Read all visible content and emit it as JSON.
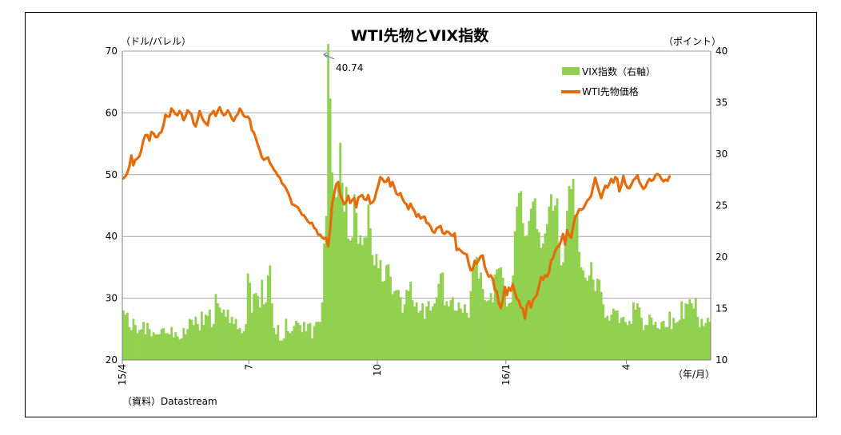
{
  "chart_data": {
    "type": "bar+line",
    "title": "WTI先物とVIX指数",
    "left_axis_unit": "（ドル/バレル）",
    "right_axis_unit": "（ポイント）",
    "x_unit": "（年/月）",
    "source_note": "（資料）Datastream",
    "left_ylim": [
      20,
      70
    ],
    "left_yticks": [
      "20",
      "30",
      "40",
      "50",
      "60",
      "70"
    ],
    "right_ylim": [
      10,
      40
    ],
    "right_yticks": [
      "10",
      "15",
      "20",
      "25",
      "30",
      "35",
      "40"
    ],
    "x_tick_labels": [
      "15/4",
      "7",
      "10",
      "16/1",
      "4"
    ],
    "x_tick_index": [
      0,
      63,
      127,
      191,
      251
    ],
    "grid": true,
    "legend_position": "top-right",
    "annotation": {
      "text": "40.74",
      "series": "VIX指数（右軸）",
      "index": 102
    },
    "series": [
      {
        "name": "VIX指数（右軸）",
        "axis": "right",
        "kind": "bar",
        "color": "#92d050",
        "values": [
          14.8,
          14.4,
          14.6,
          13.2,
          12.9,
          14.0,
          13.4,
          12.6,
          12.9,
          13.0,
          13.7,
          12.5,
          13.6,
          13.0,
          12.3,
          12.7,
          12.5,
          12.5,
          12.5,
          13.0,
          13.1,
          12.6,
          12.6,
          12.5,
          13.2,
          12.2,
          12.7,
          12.3,
          12.0,
          12.1,
          13.1,
          12.5,
          13.0,
          14.0,
          13.9,
          13.4,
          14.2,
          13.5,
          12.9,
          14.7,
          13.4,
          14.4,
          14.3,
          14.9,
          13.2,
          13.5,
          16.4,
          15.5,
          15.1,
          14.6,
          14.9,
          14.2,
          14.9,
          13.6,
          14.2,
          13.5,
          14.0,
          13.0,
          13.1,
          12.6,
          12.8,
          13.5,
          18.4,
          17.5,
          14.6,
          16.4,
          16.5,
          16.2,
          15.1,
          17.8,
          15.4,
          15.6,
          18.2,
          19.2,
          15.5,
          13.1,
          12.5,
          13.4,
          11.9,
          11.9,
          12.1,
          14.0,
          12.8,
          12.6,
          12.8,
          13.3,
          13.8,
          13.6,
          13.4,
          12.7,
          13.7,
          12.8,
          13.5,
          13.6,
          12.1,
          13.3,
          13.7,
          13.7,
          13.7,
          15.6,
          21.3,
          24.0,
          40.7,
          35.4,
          28.2,
          26.5,
          25.8,
          27.0,
          31.1,
          27.2,
          24.4,
          26.8,
          21.8,
          21.6,
          21.9,
          26.1,
          24.3,
          21.3,
          22.1,
          21.2,
          21.9,
          21.9,
          25.1,
          22.8,
          20.2,
          19.2,
          20.3,
          18.9,
          19.7,
          17.6,
          17.7,
          19.2,
          19.3,
          18.1,
          16.4,
          16.7,
          16.8,
          16.8,
          16.1,
          14.6,
          15.4,
          16.8,
          16.7,
          17.6,
          15.8,
          15.2,
          15.6,
          14.6,
          14.8,
          15.5,
          14.0,
          15.2,
          15.7,
          14.8,
          15.2,
          15.5,
          16.1,
          17.4,
          18.4,
          18.5,
          15.3,
          15.7,
          15.2,
          15.8,
          16.1,
          14.8,
          14.8,
          15.6,
          15.0,
          14.6,
          15.4,
          14.6,
          14.1,
          16.7,
          18.9,
          19.8,
          20.0,
          17.9,
          18.5,
          16.9,
          15.8,
          15.7,
          15.8,
          16.5,
          15.6,
          18.3,
          18.8,
          18.9,
          19.0,
          18.0,
          17.1,
          15.2,
          15.5,
          15.6,
          18.2,
          22.5,
          24.9,
          26.2,
          26.4,
          23.3,
          22.0,
          22.1,
          23.5,
          24.7,
          25.4,
          25.7,
          22.7,
          22.4,
          20.9,
          21.3,
          22.3,
          23.2,
          24.9,
          26.1,
          24.5,
          25.0,
          25.7,
          21.4,
          19.2,
          19.5,
          21.4,
          24.5,
          26.9,
          26.6,
          27.6,
          24.0,
          24.4,
          20.5,
          19.0,
          18.7,
          18.0,
          17.7,
          18.2,
          19.5,
          17.8,
          16.7,
          17.9,
          17.8,
          16.6,
          15.4,
          14.1,
          14.3,
          13.8,
          14.4,
          15.0,
          14.8,
          14.8,
          13.6,
          14.1,
          14.2,
          13.7,
          13.4,
          13.8,
          13.5,
          15.6,
          14.9,
          15.5,
          15.1,
          14.1,
          12.9,
          13.4,
          13.4,
          14.4,
          14.1,
          13.4,
          13.7,
          13.1,
          13.0,
          13.7,
          13.8,
          13.2,
          13.2,
          14.7,
          13.0,
          14.1,
          13.6,
          13.7,
          13.9,
          15.7,
          14.0,
          15.5,
          15.4,
          15.9,
          15.5,
          15.0,
          16.0,
          14.2,
          13.2,
          14.0,
          13.3,
          13.6,
          14.1,
          13.7
        ]
      },
      {
        "name": "WTI先物価格",
        "axis": "left",
        "kind": "line",
        "color": "#e46c0a",
        "values": [
          49.4,
          49.7,
          50.3,
          51.3,
          53.1,
          51.5,
          52.4,
          52.6,
          53.0,
          54.0,
          55.6,
          56.4,
          56.4,
          55.5,
          56.9,
          56.7,
          56.1,
          56.1,
          56.7,
          56.9,
          58.0,
          59.7,
          59.4,
          59.4,
          60.7,
          60.3,
          59.8,
          59.6,
          60.3,
          59.9,
          58.8,
          59.4,
          60.4,
          60.1,
          59.7,
          58.3,
          57.8,
          58.9,
          60.3,
          59.4,
          58.7,
          58.3,
          58.0,
          59.6,
          59.9,
          60.3,
          59.5,
          60.3,
          60.9,
          60.1,
          59.6,
          59.8,
          60.4,
          59.9,
          59.1,
          58.7,
          59.4,
          59.8,
          60.7,
          60.2,
          59.5,
          59.3,
          59.4,
          58.9,
          57.2,
          56.8,
          55.9,
          54.8,
          53.9,
          52.8,
          52.4,
          52.6,
          52.8,
          51.9,
          51.4,
          50.8,
          50.4,
          49.8,
          49.5,
          48.6,
          48.3,
          47.8,
          47.1,
          46.3,
          45.2,
          45.1,
          44.9,
          44.7,
          44.1,
          43.5,
          43.4,
          42.9,
          42.4,
          42.1,
          42.2,
          41.4,
          41.1,
          40.3,
          40.3,
          39.8,
          39.6,
          39.8,
          38.4,
          41.2,
          45.3,
          46.9,
          48.4,
          48.8,
          46.8,
          46.0,
          45.2,
          45.6,
          46.6,
          45.4,
          45.9,
          46.2,
          44.7,
          46.3,
          46.5,
          46.7,
          46.0,
          45.9,
          46.7,
          45.3,
          45.5,
          45.9,
          47.2,
          48.3,
          49.6,
          49.3,
          48.8,
          48.9,
          49.5,
          48.1,
          48.8,
          47.9,
          46.9,
          46.7,
          47.0,
          46.1,
          45.5,
          45.2,
          44.4,
          45.3,
          44.6,
          44.1,
          43.2,
          43.6,
          42.9,
          43.1,
          43.2,
          42.2,
          42.1,
          41.6,
          40.8,
          40.6,
          41.3,
          41.5,
          41.7,
          40.6,
          40.4,
          40.8,
          40.7,
          40.3,
          40.1,
          40.5,
          37.8,
          38.0,
          37.7,
          37.4,
          37.2,
          37.1,
          35.6,
          34.5,
          34.7,
          36.0,
          35.6,
          36.2,
          36.8,
          36.9,
          35.1,
          34.2,
          33.5,
          33.7,
          33.1,
          31.4,
          31.0,
          29.2,
          28.4,
          29.7,
          31.8,
          30.5,
          31.7,
          31.2,
          32.3,
          30.9,
          29.9,
          29.6,
          28.5,
          28.3,
          26.7,
          28.8,
          29.5,
          28.5,
          29.7,
          30.1,
          30.6,
          32.0,
          33.4,
          33.0,
          33.7,
          33.5,
          34.2,
          36.1,
          36.5,
          37.6,
          38.3,
          38.4,
          39.3,
          40.4,
          38.7,
          41.0,
          40.1,
          39.8,
          41.6,
          43.2,
          43.6,
          44.4,
          44.3,
          44.5,
          45.1,
          45.8,
          46.1,
          46.6,
          48.1,
          49.5,
          48.3,
          47.2,
          46.2,
          47.3,
          48.2,
          47.9,
          48.5,
          49.3,
          48.7,
          49.6,
          49.3,
          47.3,
          48.2,
          49.8,
          48.5,
          47.9,
          47.8,
          48.4,
          49.1,
          49.4,
          49.9,
          48.8,
          48.2,
          47.7,
          48.0,
          48.8,
          49.3,
          49.0,
          49.2,
          49.9,
          50.1,
          49.9,
          49.3,
          48.9,
          49.2,
          49.0,
          49.7
        ]
      }
    ]
  }
}
